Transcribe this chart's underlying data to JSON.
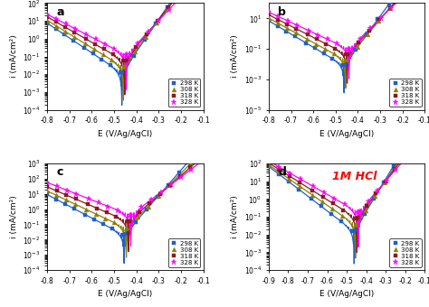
{
  "panels": [
    "a",
    "b",
    "c",
    "d"
  ],
  "temperatures": [
    "298 K",
    "308 K",
    "318 K",
    "328 K"
  ],
  "colors": [
    "#1e5fcc",
    "#8b8000",
    "#8b1a1a",
    "#ff00ff"
  ],
  "markers": [
    "s",
    "^",
    "s",
    "*"
  ],
  "marker_sizes": [
    3,
    3.5,
    3,
    5
  ],
  "panel_a": {
    "E_corr": [
      -0.465,
      -0.458,
      -0.452,
      -0.445
    ],
    "x_range": [
      -0.8,
      -0.1
    ],
    "x_ticks": [
      -0.8,
      -0.7,
      -0.6,
      -0.5,
      -0.4,
      -0.3,
      -0.2,
      -0.1
    ],
    "ylim": [
      0.0001,
      100.0
    ],
    "xlabel": "E (V/Ag/AgCl)",
    "ylabel": "i (mA/cm²)",
    "label": "a",
    "ba": [
      0.055,
      0.06,
      0.065,
      0.075
    ],
    "bc": [
      0.12,
      0.13,
      0.14,
      0.155
    ],
    "icorr": [
      0.012,
      0.025,
      0.055,
      0.12
    ]
  },
  "panel_b": {
    "E_corr": [
      -0.462,
      -0.455,
      -0.448,
      -0.44
    ],
    "x_range": [
      -0.8,
      -0.1
    ],
    "x_ticks": [
      -0.8,
      -0.7,
      -0.6,
      -0.5,
      -0.4,
      -0.3,
      -0.2,
      -0.1
    ],
    "ylim": [
      1e-05,
      100.0
    ],
    "xlabel": "E (V/Ag/AgCl)",
    "ylabel": "i (mA/cm²)",
    "label": "b",
    "ba": [
      0.05,
      0.058,
      0.063,
      0.07
    ],
    "bc": [
      0.115,
      0.125,
      0.135,
      0.148
    ],
    "icorr": [
      0.008,
      0.018,
      0.042,
      0.095
    ]
  },
  "panel_c": {
    "E_corr": [
      -0.455,
      -0.445,
      -0.435,
      -0.425
    ],
    "x_range": [
      -0.8,
      -0.1
    ],
    "x_ticks": [
      -0.8,
      -0.7,
      -0.6,
      -0.5,
      -0.4,
      -0.3,
      -0.2,
      -0.1
    ],
    "ylim": [
      0.0001,
      1000.0
    ],
    "xlabel": "E (V/Ag/AgCl)",
    "ylabel": "i (mA/cm²)",
    "label": "c",
    "ba": [
      0.06,
      0.068,
      0.078,
      0.09
    ],
    "bc": [
      0.13,
      0.145,
      0.16,
      0.175
    ],
    "icorr": [
      0.02,
      0.055,
      0.15,
      0.4
    ]
  },
  "panel_d": {
    "E_corr": [
      -0.462,
      -0.455,
      -0.448,
      -0.44
    ],
    "x_range": [
      -0.9,
      -0.1
    ],
    "x_ticks": [
      -0.9,
      -0.8,
      -0.7,
      -0.6,
      -0.5,
      -0.4,
      -0.3,
      -0.2,
      -0.1
    ],
    "ylim": [
      0.0001,
      100.0
    ],
    "xlabel": "E (V/Ag/AgCl)",
    "ylabel": "i (mA/cm²)",
    "label": "d",
    "ba": [
      0.055,
      0.062,
      0.07,
      0.08
    ],
    "bc": [
      0.12,
      0.132,
      0.145,
      0.16
    ],
    "icorr": [
      0.015,
      0.035,
      0.08,
      0.18
    ],
    "annotation": "1M HCl",
    "annotation_color": "red"
  },
  "legend_loc": "lower right",
  "bg_color": "#ffffff",
  "n_markers_cat": 9,
  "n_markers_an": 8
}
